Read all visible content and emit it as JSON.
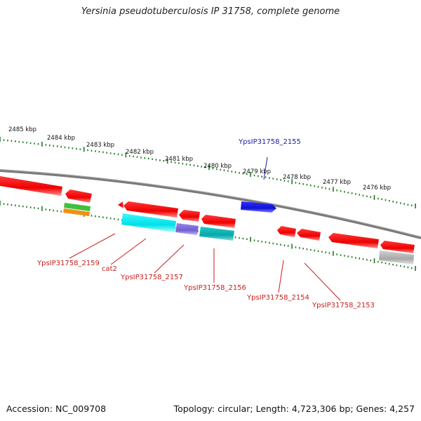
{
  "title": "Yersinia pseudotuberculosis IP 31758, complete genome",
  "footer": {
    "accession": "Accession: NC_009708",
    "summary": "Topology: circular; Length: 4,723,306 bp; Genes: 4,257"
  },
  "ruler": {
    "labels": [
      "2485 kbp",
      "2484 kbp",
      "2483 kbp",
      "2482 kbp",
      "2481 kbp",
      "2480 kbp",
      "2479 kbp",
      "2478 kbp",
      "2477 kbp",
      "2476 kbp"
    ]
  },
  "gene_labels": [
    {
      "name": "YpsIP31758_2155",
      "color": "#1a1aa8"
    },
    {
      "name": "YpsIP31758_2159",
      "color": "#c81e1e"
    },
    {
      "name": "cat2",
      "color": "#c81e1e"
    },
    {
      "name": "YpsIP31758_2157",
      "color": "#c81e1e"
    },
    {
      "name": "YpsIP31758_2156",
      "color": "#c81e1e"
    },
    {
      "name": "YpsIP31758_2154",
      "color": "#c81e1e"
    },
    {
      "name": "YpsIP31758_2153",
      "color": "#c81e1e"
    }
  ],
  "colors": {
    "gene_red": "#ff1010",
    "gene_blue": "#1a1ae0",
    "cyan": "#00e8f0",
    "teal": "#10b8b8",
    "purple": "#8070d8",
    "green": "#40c040",
    "orange": "#f09010",
    "grey": "#b8b8b8",
    "backbone": "#808080",
    "tick": "#1e7a1e"
  }
}
